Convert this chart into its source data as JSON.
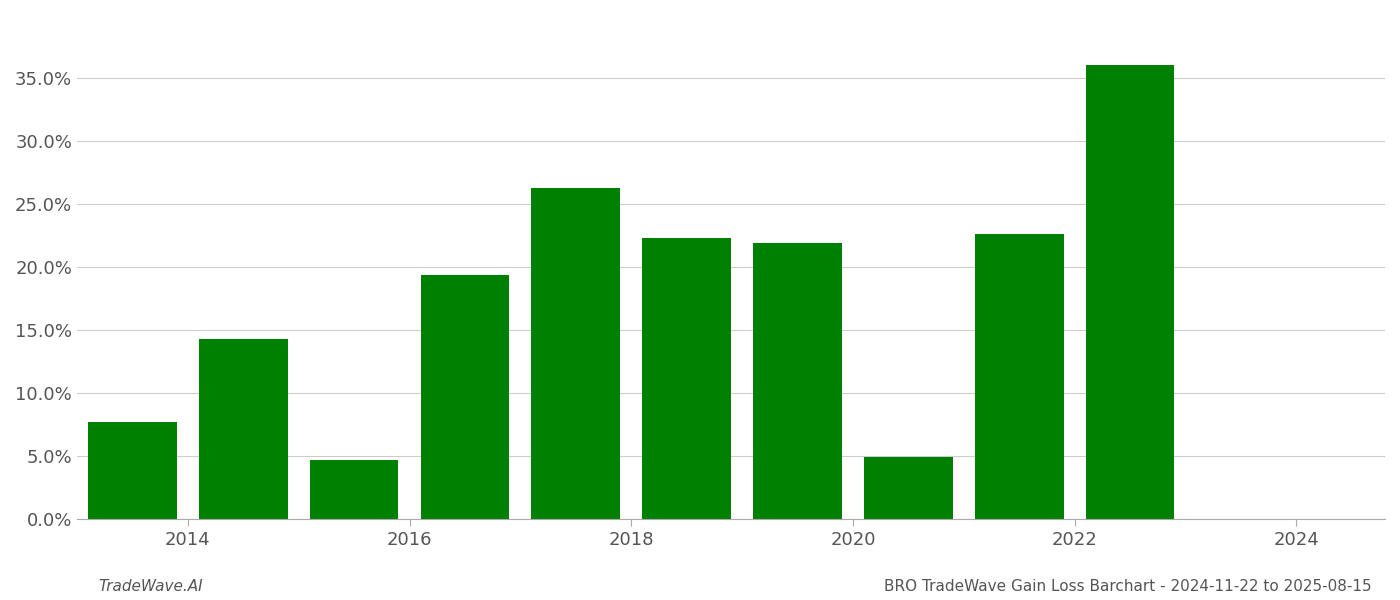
{
  "years": [
    2013.5,
    2014.5,
    2015.5,
    2016.5,
    2017.5,
    2018.5,
    2019.5,
    2020.5,
    2021.5,
    2022.5
  ],
  "values": [
    0.077,
    0.143,
    0.047,
    0.194,
    0.263,
    0.223,
    0.219,
    0.049,
    0.226,
    0.36
  ],
  "bar_color": "#008000",
  "background_color": "#ffffff",
  "grid_color": "#cccccc",
  "ylim": [
    0,
    0.4
  ],
  "yticks": [
    0.0,
    0.05,
    0.1,
    0.15,
    0.2,
    0.25,
    0.3,
    0.35
  ],
  "xticks": [
    2014,
    2016,
    2018,
    2020,
    2022,
    2024
  ],
  "xlim": [
    2013.0,
    2024.8
  ],
  "bar_width": 0.8,
  "fig_width": 14.0,
  "fig_height": 6.0,
  "dpi": 100,
  "footer_left": "TradeWave.AI",
  "footer_right": "BRO TradeWave Gain Loss Barchart - 2024-11-22 to 2025-08-15",
  "footer_fontsize": 11,
  "tick_fontsize": 13,
  "spine_color": "#aaaaaa",
  "text_color": "#555555"
}
